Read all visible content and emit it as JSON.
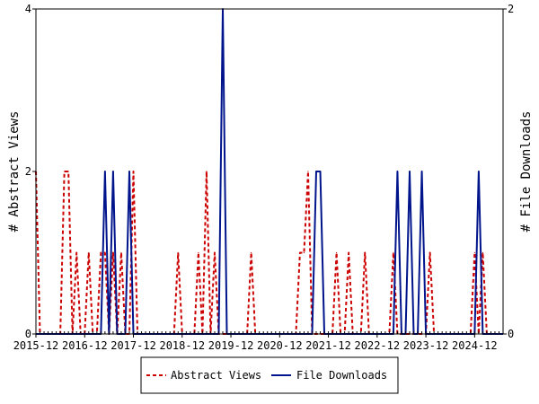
{
  "chart_data": {
    "type": "line",
    "x_tick_labels": [
      "2015-12",
      "2016-12",
      "2017-12",
      "2018-12",
      "2019-12",
      "2020-12",
      "2021-12",
      "2022-12",
      "2023-12",
      "2024-12"
    ],
    "y_left": {
      "label": "# Abstract Views",
      "ylim": [
        0,
        4
      ],
      "ticks": [
        "0",
        "2",
        "4"
      ]
    },
    "y_right": {
      "label": "# File Downloads",
      "ylim": [
        0,
        2
      ],
      "ticks": [
        "0",
        "2"
      ]
    },
    "legend_position": "bottom-center",
    "grid": false,
    "series": [
      {
        "name": "Abstract Views",
        "axis": "left",
        "color": "#cc0000",
        "style": "dashed",
        "x": [
          "2015-12",
          "2016-01",
          "2016-02",
          "2016-03",
          "2016-04",
          "2016-05",
          "2016-06",
          "2016-07",
          "2016-08",
          "2016-09",
          "2016-10",
          "2016-11",
          "2016-12",
          "2017-01",
          "2017-02",
          "2017-03",
          "2017-04",
          "2017-05",
          "2017-06",
          "2017-07",
          "2017-08",
          "2017-09",
          "2017-10",
          "2017-11",
          "2017-12",
          "2018-01",
          "2018-02",
          "2018-03",
          "2018-04",
          "2018-05",
          "2018-06",
          "2018-07",
          "2018-08",
          "2018-09",
          "2018-10",
          "2018-11",
          "2018-12",
          "2019-01",
          "2019-02",
          "2019-03",
          "2019-04",
          "2019-05",
          "2019-06",
          "2019-07",
          "2019-08",
          "2019-09",
          "2019-10",
          "2019-11",
          "2019-12",
          "2020-01",
          "2020-02",
          "2020-03",
          "2020-04",
          "2020-05",
          "2020-06",
          "2020-07",
          "2020-08",
          "2020-09",
          "2020-10",
          "2020-11",
          "2020-12",
          "2021-01",
          "2021-02",
          "2021-03",
          "2021-04",
          "2021-05",
          "2021-06",
          "2021-07",
          "2021-08",
          "2021-09",
          "2021-10",
          "2021-11",
          "2021-12",
          "2022-01",
          "2022-02",
          "2022-03",
          "2022-04",
          "2022-05",
          "2022-06",
          "2022-07",
          "2022-08",
          "2022-09",
          "2022-10",
          "2022-11",
          "2022-12",
          "2023-01",
          "2023-02",
          "2023-03",
          "2023-04",
          "2023-05",
          "2023-06",
          "2023-07",
          "2023-08",
          "2023-09",
          "2023-10",
          "2023-11",
          "2023-12",
          "2024-01",
          "2024-02",
          "2024-03",
          "2024-04",
          "2024-05",
          "2024-06",
          "2024-07",
          "2024-08",
          "2024-09",
          "2024-10",
          "2024-11",
          "2024-12",
          "2025-01",
          "2025-02",
          "2025-03",
          "2025-04",
          "2025-05",
          "2025-06",
          "2025-07"
        ],
        "values": [
          2,
          0,
          0,
          0,
          0,
          0,
          0,
          2,
          2,
          0,
          1,
          0,
          0,
          1,
          0,
          0,
          1,
          1,
          0,
          1,
          0,
          1,
          0,
          0,
          2,
          0,
          0,
          0,
          0,
          0,
          0,
          0,
          0,
          0,
          0,
          1,
          0,
          0,
          0,
          0,
          1,
          0,
          2,
          0,
          1,
          0,
          0,
          0,
          0,
          0,
          0,
          0,
          0,
          1,
          0,
          0,
          0,
          0,
          0,
          0,
          0,
          0,
          0,
          0,
          0,
          1,
          1,
          2,
          0,
          0,
          0,
          0,
          0,
          0,
          1,
          0,
          0,
          1,
          0,
          0,
          0,
          1,
          0,
          0,
          0,
          0,
          0,
          0,
          1,
          0,
          0,
          0,
          0,
          0,
          0,
          0,
          0,
          1,
          0,
          0,
          0,
          0,
          0,
          0,
          0,
          0,
          0,
          0,
          1,
          0,
          1,
          0,
          0,
          0,
          0,
          0
        ]
      },
      {
        "name": "File Downloads",
        "axis": "right",
        "color": "#00148c",
        "style": "solid",
        "x": [
          "2015-12",
          "2016-01",
          "2016-02",
          "2016-03",
          "2016-04",
          "2016-05",
          "2016-06",
          "2016-07",
          "2016-08",
          "2016-09",
          "2016-10",
          "2016-11",
          "2016-12",
          "2017-01",
          "2017-02",
          "2017-03",
          "2017-04",
          "2017-05",
          "2017-06",
          "2017-07",
          "2017-08",
          "2017-09",
          "2017-10",
          "2017-11",
          "2017-12",
          "2018-01",
          "2018-02",
          "2018-03",
          "2018-04",
          "2018-05",
          "2018-06",
          "2018-07",
          "2018-08",
          "2018-09",
          "2018-10",
          "2018-11",
          "2018-12",
          "2019-01",
          "2019-02",
          "2019-03",
          "2019-04",
          "2019-05",
          "2019-06",
          "2019-07",
          "2019-08",
          "2019-09",
          "2019-10",
          "2019-11",
          "2019-12",
          "2020-01",
          "2020-02",
          "2020-03",
          "2020-04",
          "2020-05",
          "2020-06",
          "2020-07",
          "2020-08",
          "2020-09",
          "2020-10",
          "2020-11",
          "2020-12",
          "2021-01",
          "2021-02",
          "2021-03",
          "2021-04",
          "2021-05",
          "2021-06",
          "2021-07",
          "2021-08",
          "2021-09",
          "2021-10",
          "2021-11",
          "2021-12",
          "2022-01",
          "2022-02",
          "2022-03",
          "2022-04",
          "2022-05",
          "2022-06",
          "2022-07",
          "2022-08",
          "2022-09",
          "2022-10",
          "2022-11",
          "2022-12",
          "2023-01",
          "2023-02",
          "2023-03",
          "2023-04",
          "2023-05",
          "2023-06",
          "2023-07",
          "2023-08",
          "2023-09",
          "2023-10",
          "2023-11",
          "2023-12",
          "2024-01",
          "2024-02",
          "2024-03",
          "2024-04",
          "2024-05",
          "2024-06",
          "2024-07",
          "2024-08",
          "2024-09",
          "2024-10",
          "2024-11",
          "2024-12",
          "2025-01",
          "2025-02",
          "2025-03",
          "2025-04",
          "2025-05",
          "2025-06",
          "2025-07"
        ],
        "values": [
          0,
          0,
          0,
          0,
          0,
          0,
          0,
          0,
          0,
          0,
          0,
          0,
          0,
          0,
          0,
          0,
          0,
          1,
          0,
          1,
          0,
          0,
          0,
          1,
          0,
          0,
          0,
          0,
          0,
          0,
          0,
          0,
          0,
          0,
          0,
          0,
          0,
          0,
          0,
          0,
          0,
          0,
          0,
          0,
          0,
          0,
          2,
          0,
          0,
          0,
          0,
          0,
          0,
          0,
          0,
          0,
          0,
          0,
          0,
          0,
          0,
          0,
          0,
          0,
          0,
          0,
          0,
          0,
          0,
          1,
          1,
          0,
          0,
          0,
          0,
          0,
          0,
          0,
          0,
          0,
          0,
          0,
          0,
          0,
          0,
          0,
          0,
          0,
          0,
          1,
          0,
          0,
          1,
          0,
          0,
          1,
          0,
          0,
          0,
          0,
          0,
          0,
          0,
          0,
          0,
          0,
          0,
          0,
          0,
          1,
          0,
          0,
          0,
          0,
          0,
          0
        ]
      }
    ]
  }
}
